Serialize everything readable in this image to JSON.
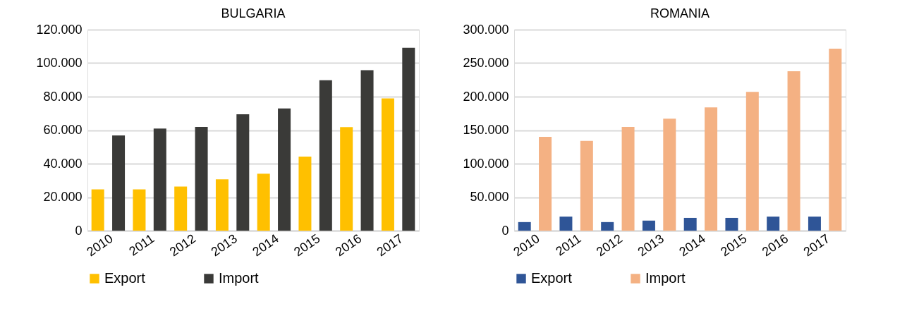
{
  "chart_data": [
    {
      "type": "bar",
      "title": "BULGARIA",
      "categories": [
        "2010",
        "2011",
        "2012",
        "2013",
        "2014",
        "2015",
        "2016",
        "2017"
      ],
      "series": [
        {
          "name": "Export",
          "color": "#ffc000",
          "values": [
            24600,
            24600,
            26300,
            30600,
            34000,
            44200,
            61800,
            78900
          ]
        },
        {
          "name": "Import",
          "color": "#3a3a38",
          "values": [
            56800,
            61000,
            61900,
            69500,
            72900,
            89800,
            95800,
            109200
          ]
        }
      ],
      "ylim": [
        0,
        120000
      ],
      "yticks": [
        0,
        {
          "value": 20000,
          "label": "20.000"
        },
        {
          "value": 40000,
          "label": "40.000"
        },
        {
          "value": 60000,
          "label": "60.000"
        },
        {
          "value": 80000,
          "label": "80.000"
        },
        {
          "value": 100000,
          "label": "100.000"
        },
        {
          "value": 120000,
          "label": "120.000"
        }
      ],
      "grid": "y",
      "legend": "bottom"
    },
    {
      "type": "bar",
      "title": "ROMANIA",
      "categories": [
        "2010",
        "2011",
        "2012",
        "2013",
        "2014",
        "2015",
        "2016",
        "2017"
      ],
      "series": [
        {
          "name": "Export",
          "color": "#2f5597",
          "values": [
            12800,
            21000,
            12800,
            15000,
            19000,
            19000,
            21000,
            21000
          ]
        },
        {
          "name": "Import",
          "color": "#f4b183",
          "values": [
            140000,
            134000,
            154800,
            167000,
            184000,
            207000,
            238000,
            271600
          ]
        }
      ],
      "ylim": [
        0,
        300000
      ],
      "yticks": [
        0,
        {
          "value": 50000,
          "label": "50.000"
        },
        {
          "value": 100000,
          "label": "100.000"
        },
        {
          "value": 150000,
          "label": "150.000"
        },
        {
          "value": 200000,
          "label": "200.000"
        },
        {
          "value": 250000,
          "label": "250.000"
        },
        {
          "value": 300000,
          "label": "300.000"
        }
      ],
      "grid": "y",
      "legend": "bottom"
    }
  ]
}
